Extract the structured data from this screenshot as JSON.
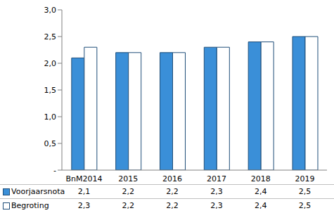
{
  "chart_data": {
    "type": "bar",
    "categories": [
      "BnM2014",
      "2015",
      "2016",
      "2017",
      "2018",
      "2019"
    ],
    "series": [
      {
        "name": "Voorjaarsnota",
        "color": "#3a8fd8",
        "values": [
          2.1,
          2.2,
          2.2,
          2.3,
          2.4,
          2.5
        ],
        "value_labels": [
          "2,1",
          "2,2",
          "2,2",
          "2,3",
          "2,4",
          "2,5"
        ]
      },
      {
        "name": "Begroting",
        "color": "#ffffff",
        "values": [
          2.3,
          2.2,
          2.2,
          2.3,
          2.4,
          2.5
        ],
        "value_labels": [
          "2,3",
          "2,2",
          "2,2",
          "2,3",
          "2,4",
          "2,5"
        ]
      }
    ],
    "ylim": [
      0,
      3
    ],
    "yticks": [
      {
        "value": 0,
        "label": "-"
      },
      {
        "value": 0.5,
        "label": "0,5"
      },
      {
        "value": 1,
        "label": "1,0"
      },
      {
        "value": 1.5,
        "label": "1,5"
      },
      {
        "value": 2,
        "label": "2,0"
      },
      {
        "value": 2.5,
        "label": "2,5"
      },
      {
        "value": 3,
        "label": "3,0"
      }
    ],
    "grid": false
  }
}
